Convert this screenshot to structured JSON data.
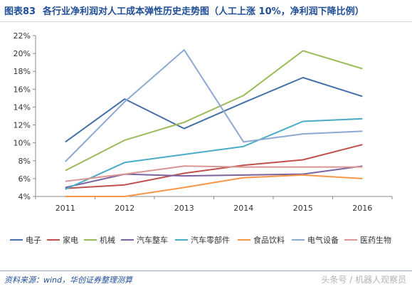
{
  "header": {
    "figure_label": "图表83",
    "title": "各行业净利润对人工成本弹性历史走势图（人工上涨 10%，净利润下降比例）"
  },
  "footer": {
    "source": "资料来源：wind，华创证券整理测算",
    "watermark": "头条号 / 机器人观察员"
  },
  "chart_data": {
    "type": "line",
    "categories": [
      "2011",
      "2012",
      "2013",
      "2014",
      "2015",
      "2016"
    ],
    "yticks": [
      "4%",
      "6%",
      "8%",
      "10%",
      "12%",
      "14%",
      "16%",
      "18%",
      "20%",
      "22%"
    ],
    "ylim": [
      4,
      22
    ],
    "grid": false,
    "legend_position": "bottom",
    "series": [
      {
        "name": "电子",
        "color": "#4472a8",
        "values": [
          10.1,
          14.9,
          11.6,
          14.5,
          17.3,
          15.2
        ]
      },
      {
        "name": "家电",
        "color": "#c0504d",
        "values": [
          4.9,
          5.3,
          6.6,
          7.5,
          8.1,
          9.8
        ]
      },
      {
        "name": "机械",
        "color": "#9bbb59",
        "values": [
          6.9,
          10.3,
          12.3,
          15.3,
          20.3,
          18.3
        ]
      },
      {
        "name": "汽车整车",
        "color": "#7a63a0",
        "values": [
          5.0,
          6.5,
          6.3,
          6.4,
          6.5,
          7.4
        ]
      },
      {
        "name": "汽车零部件",
        "color": "#4bacc6",
        "values": [
          4.8,
          7.8,
          8.7,
          9.6,
          12.4,
          12.7
        ]
      },
      {
        "name": "食品饮料",
        "color": "#f79646",
        "values": [
          4.0,
          4.0,
          5.0,
          6.1,
          6.4,
          6.0
        ]
      },
      {
        "name": "电气设备",
        "color": "#8ea9d1",
        "values": [
          7.9,
          14.6,
          20.4,
          10.1,
          11.0,
          11.3
        ]
      },
      {
        "name": "医药生物",
        "color": "#d99694",
        "values": [
          5.7,
          6.5,
          7.4,
          7.3,
          7.3,
          7.3
        ]
      }
    ]
  }
}
